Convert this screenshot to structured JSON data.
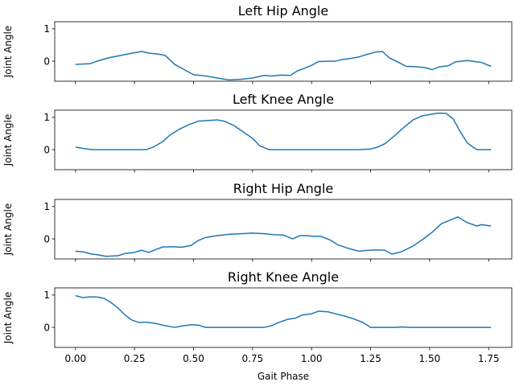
{
  "chart_data": [
    {
      "type": "line",
      "title": "Left Hip Angle",
      "xlabel": "",
      "ylabel": "Joint Angle",
      "xlim": [
        -0.088,
        1.848
      ],
      "ylim": [
        -0.62,
        1.22
      ],
      "x_ticks": [],
      "y_ticks": [
        0,
        1
      ],
      "y_tick_labels": [
        "0",
        "1"
      ],
      "grid": false,
      "series": [
        {
          "color": "#1f77b4",
          "x": [
            0.0,
            0.03,
            0.06,
            0.1,
            0.15,
            0.18,
            0.22,
            0.25,
            0.28,
            0.31,
            0.35,
            0.38,
            0.42,
            0.46,
            0.5,
            0.53,
            0.57,
            0.6,
            0.65,
            0.7,
            0.75,
            0.8,
            0.83,
            0.87,
            0.91,
            0.94,
            0.97,
            1.0,
            1.03,
            1.07,
            1.1,
            1.13,
            1.16,
            1.2,
            1.23,
            1.27,
            1.3,
            1.33,
            1.37,
            1.4,
            1.44,
            1.48,
            1.51,
            1.54,
            1.58,
            1.61,
            1.66,
            1.72,
            1.76
          ],
          "y": [
            -0.1,
            -0.09,
            -0.08,
            0.02,
            0.12,
            0.16,
            0.22,
            0.26,
            0.3,
            0.25,
            0.22,
            0.18,
            -0.1,
            -0.26,
            -0.42,
            -0.44,
            -0.48,
            -0.52,
            -0.58,
            -0.56,
            -0.52,
            -0.44,
            -0.46,
            -0.43,
            -0.44,
            -0.3,
            -0.22,
            -0.13,
            -0.01,
            0.0,
            0.0,
            0.05,
            0.08,
            0.13,
            0.2,
            0.28,
            0.3,
            0.1,
            -0.04,
            -0.16,
            -0.17,
            -0.2,
            -0.26,
            -0.18,
            -0.14,
            -0.02,
            0.02,
            -0.04,
            -0.16
          ]
        }
      ]
    },
    {
      "type": "line",
      "title": "Left Knee Angle",
      "xlabel": "",
      "ylabel": "Joint Angle",
      "xlim": [
        -0.088,
        1.848
      ],
      "ylim": [
        -0.62,
        1.22
      ],
      "x_ticks": [],
      "y_ticks": [
        0,
        1
      ],
      "y_tick_labels": [
        "0",
        "1"
      ],
      "grid": false,
      "series": [
        {
          "color": "#1f77b4",
          "x": [
            0.0,
            0.03,
            0.07,
            0.1,
            0.15,
            0.2,
            0.25,
            0.3,
            0.33,
            0.37,
            0.4,
            0.44,
            0.48,
            0.52,
            0.56,
            0.6,
            0.63,
            0.67,
            0.71,
            0.75,
            0.78,
            0.82,
            0.86,
            0.9,
            1.0,
            1.1,
            1.2,
            1.25,
            1.28,
            1.31,
            1.35,
            1.39,
            1.43,
            1.47,
            1.51,
            1.54,
            1.57,
            1.6,
            1.63,
            1.66,
            1.7,
            1.76
          ],
          "y": [
            0.08,
            0.04,
            0.0,
            0.0,
            0.0,
            0.0,
            0.0,
            0.0,
            0.08,
            0.25,
            0.45,
            0.63,
            0.77,
            0.88,
            0.9,
            0.92,
            0.88,
            0.75,
            0.55,
            0.35,
            0.12,
            0.0,
            0.0,
            0.0,
            0.0,
            0.0,
            0.0,
            0.02,
            0.08,
            0.18,
            0.42,
            0.68,
            0.92,
            1.05,
            1.1,
            1.13,
            1.12,
            0.95,
            0.55,
            0.2,
            0.0,
            0.0
          ]
        }
      ]
    },
    {
      "type": "line",
      "title": "Right Hip Angle",
      "xlabel": "",
      "ylabel": "Joint Angle",
      "xlim": [
        -0.088,
        1.848
      ],
      "ylim": [
        -0.62,
        1.22
      ],
      "x_ticks": [],
      "y_ticks": [
        0,
        1
      ],
      "y_tick_labels": [
        "0",
        "1"
      ],
      "grid": false,
      "series": [
        {
          "color": "#1f77b4",
          "x": [
            0.0,
            0.03,
            0.07,
            0.1,
            0.13,
            0.18,
            0.21,
            0.25,
            0.28,
            0.31,
            0.34,
            0.37,
            0.41,
            0.45,
            0.49,
            0.52,
            0.55,
            0.6,
            0.65,
            0.7,
            0.75,
            0.8,
            0.84,
            0.88,
            0.92,
            0.95,
            0.98,
            1.01,
            1.04,
            1.08,
            1.11,
            1.15,
            1.2,
            1.23,
            1.27,
            1.31,
            1.34,
            1.38,
            1.43,
            1.47,
            1.51,
            1.55,
            1.58,
            1.62,
            1.66,
            1.7,
            1.72,
            1.76
          ],
          "y": [
            -0.38,
            -0.4,
            -0.47,
            -0.5,
            -0.54,
            -0.52,
            -0.45,
            -0.42,
            -0.35,
            -0.42,
            -0.33,
            -0.25,
            -0.24,
            -0.26,
            -0.2,
            -0.05,
            0.04,
            0.1,
            0.14,
            0.16,
            0.18,
            0.16,
            0.13,
            0.12,
            0.0,
            0.1,
            0.1,
            0.08,
            0.08,
            -0.04,
            -0.18,
            -0.28,
            -0.38,
            -0.36,
            -0.34,
            -0.35,
            -0.47,
            -0.4,
            -0.22,
            -0.02,
            0.2,
            0.47,
            0.56,
            0.68,
            0.5,
            0.4,
            0.44,
            0.4
          ]
        }
      ]
    },
    {
      "type": "line",
      "title": "Right Knee Angle",
      "xlabel": "Gait Phase",
      "ylabel": "Joint Angle",
      "xlim": [
        -0.088,
        1.848
      ],
      "ylim": [
        -0.62,
        1.22
      ],
      "x_ticks": [
        0,
        0.25,
        0.5,
        0.75,
        1.0,
        1.25,
        1.5,
        1.75
      ],
      "x_tick_labels": [
        "0.00",
        "0.25",
        "0.50",
        "0.75",
        "1.00",
        "1.25",
        "1.50",
        "1.75"
      ],
      "y_ticks": [
        0,
        1
      ],
      "y_tick_labels": [
        "0",
        "1"
      ],
      "grid": false,
      "series": [
        {
          "color": "#1f77b4",
          "x": [
            0.0,
            0.03,
            0.06,
            0.09,
            0.12,
            0.15,
            0.18,
            0.21,
            0.24,
            0.27,
            0.3,
            0.34,
            0.38,
            0.42,
            0.46,
            0.49,
            0.52,
            0.55,
            0.6,
            0.65,
            0.7,
            0.75,
            0.8,
            0.83,
            0.86,
            0.9,
            0.93,
            0.96,
            1.0,
            1.03,
            1.07,
            1.1,
            1.14,
            1.18,
            1.22,
            1.25,
            1.3,
            1.35,
            1.38,
            1.42,
            1.46,
            1.52,
            1.6,
            1.7,
            1.76
          ],
          "y": [
            0.98,
            0.92,
            0.94,
            0.94,
            0.9,
            0.77,
            0.6,
            0.38,
            0.22,
            0.15,
            0.16,
            0.12,
            0.05,
            0.0,
            0.05,
            0.08,
            0.07,
            0.0,
            0.0,
            0.0,
            0.0,
            0.0,
            0.0,
            0.05,
            0.15,
            0.25,
            0.28,
            0.38,
            0.42,
            0.5,
            0.48,
            0.42,
            0.35,
            0.26,
            0.14,
            0.0,
            0.0,
            0.0,
            0.01,
            0.0,
            0.0,
            0.0,
            0.0,
            0.0,
            0.0
          ]
        }
      ]
    }
  ]
}
